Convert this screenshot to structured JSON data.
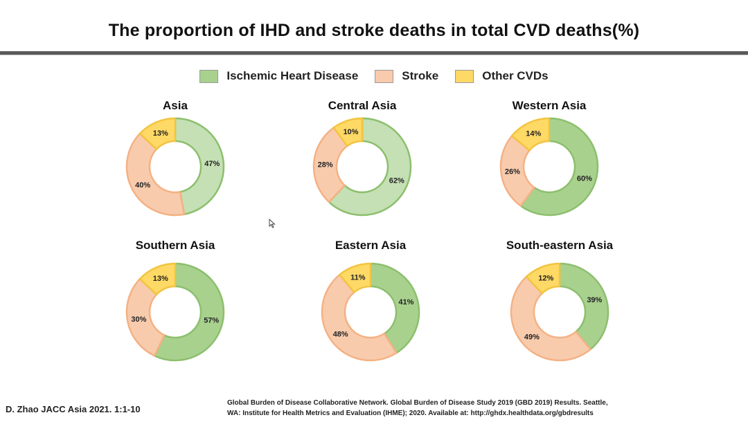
{
  "title": "The proportion  of IHD and stroke deaths in total CVD deaths(%)",
  "colors": {
    "ihd_fill": "#a9d18e",
    "ihd_fill_light": "#c5e0b4",
    "ihd_stroke": "#8cbf6d",
    "stroke_fill": "#f8cbad",
    "stroke_stroke": "#f4b183",
    "other_fill": "#ffd966",
    "other_stroke": "#f2c440"
  },
  "legend": {
    "items": [
      {
        "label": "Ischemic Heart Disease",
        "color": "#a9d18e"
      },
      {
        "label": "Stroke",
        "color": "#f8cbad"
      },
      {
        "label": "Other CVDs",
        "color": "#ffd966"
      }
    ]
  },
  "chart_data": [
    {
      "type": "pie",
      "title": "Asia",
      "categories": [
        "Ischemic Heart Disease",
        "Stroke",
        "Other CVDs"
      ],
      "values": [
        47,
        40,
        13
      ],
      "labels": [
        "47%",
        "40%",
        "13%"
      ]
    },
    {
      "type": "pie",
      "title": "Central  Asia",
      "categories": [
        "Ischemic Heart Disease",
        "Stroke",
        "Other CVDs"
      ],
      "values": [
        62,
        28,
        10
      ],
      "labels": [
        "62%",
        "28%",
        "10%"
      ]
    },
    {
      "type": "pie",
      "title": "Western Asia",
      "categories": [
        "Ischemic Heart Disease",
        "Stroke",
        "Other CVDs"
      ],
      "values": [
        60,
        26,
        14
      ],
      "labels": [
        "60%",
        "26%",
        "14%"
      ]
    },
    {
      "type": "pie",
      "title": "Southern Asia",
      "categories": [
        "Ischemic Heart Disease",
        "Stroke",
        "Other CVDs"
      ],
      "values": [
        57,
        30,
        13
      ],
      "labels": [
        "57%",
        "30%",
        "13%"
      ]
    },
    {
      "type": "pie",
      "title": "Eastern Asia",
      "categories": [
        "Ischemic Heart Disease",
        "Stroke",
        "Other CVDs"
      ],
      "values": [
        41,
        48,
        11
      ],
      "labels": [
        "41%",
        "48%",
        "11%"
      ]
    },
    {
      "type": "pie",
      "title": "South-eastern Asia",
      "categories": [
        "Ischemic Heart Disease",
        "Stroke",
        "Other CVDs"
      ],
      "values": [
        39,
        49,
        12
      ],
      "labels": [
        "39%",
        "49%",
        "12%"
      ]
    }
  ],
  "footer": {
    "citation": "D. Zhao  JACC Asia 2021. 1:1-10",
    "source_line1": "Global Burden of Disease Collaborative Network. Global Burden of Disease Study 2019 (GBD 2019) Results. Seattle,",
    "source_line2": "WA: Institute for Health Metrics and Evaluation (IHME); 2020. Available at: http://ghdx.healthdata.org/gbdresults"
  }
}
